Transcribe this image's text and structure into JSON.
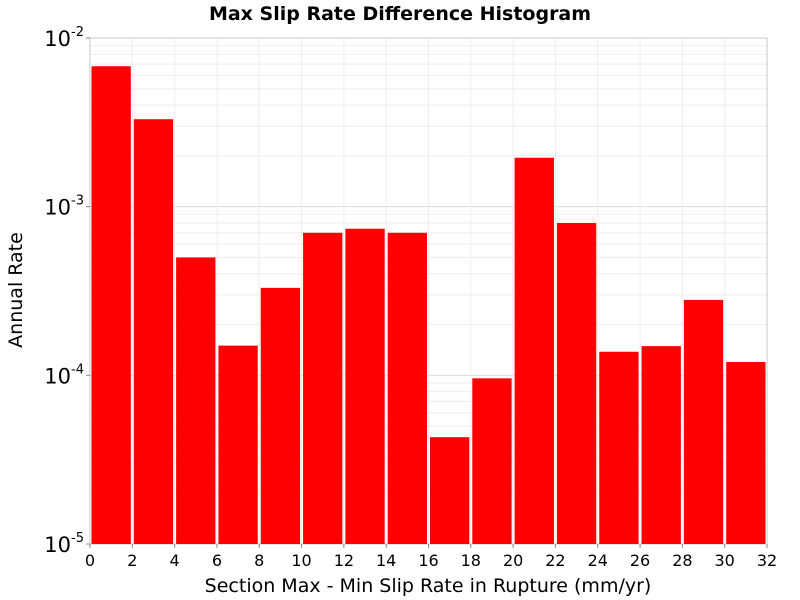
{
  "chart_data": {
    "type": "bar",
    "title": "Max Slip Rate Difference Histogram",
    "xlabel": "Section Max - Min Slip Rate in Rupture (mm/yr)",
    "ylabel": "Annual Rate",
    "x_scale": "linear",
    "y_scale": "log",
    "xlim": [
      0,
      32
    ],
    "ylim": [
      1e-05,
      0.01
    ],
    "bin_width": 2,
    "x_ticks": [
      0,
      2,
      4,
      6,
      8,
      10,
      12,
      14,
      16,
      18,
      20,
      22,
      24,
      26,
      28,
      30,
      32
    ],
    "y_ticks": [
      {
        "value": 1e-05,
        "base": "10",
        "exp": "-5"
      },
      {
        "value": 0.0001,
        "base": "10",
        "exp": "-4"
      },
      {
        "value": 0.001,
        "base": "10",
        "exp": "-3"
      },
      {
        "value": 0.01,
        "base": "10",
        "exp": "-2"
      }
    ],
    "grid": true,
    "bar_color": "#ff0000",
    "bins": [
      {
        "x_start": 0,
        "x_end": 2,
        "value": 0.0068
      },
      {
        "x_start": 2,
        "x_end": 4,
        "value": 0.0033
      },
      {
        "x_start": 4,
        "x_end": 6,
        "value": 0.0005
      },
      {
        "x_start": 6,
        "x_end": 8,
        "value": 0.00015
      },
      {
        "x_start": 8,
        "x_end": 10,
        "value": 0.00033
      },
      {
        "x_start": 10,
        "x_end": 12,
        "value": 0.0007
      },
      {
        "x_start": 12,
        "x_end": 14,
        "value": 0.00074
      },
      {
        "x_start": 14,
        "x_end": 16,
        "value": 0.0007
      },
      {
        "x_start": 16,
        "x_end": 18,
        "value": 4.3e-05
      },
      {
        "x_start": 18,
        "x_end": 20,
        "value": 9.6e-05
      },
      {
        "x_start": 20,
        "x_end": 22,
        "value": 0.00195
      },
      {
        "x_start": 22,
        "x_end": 24,
        "value": 0.0008
      },
      {
        "x_start": 24,
        "x_end": 26,
        "value": 0.000138
      },
      {
        "x_start": 26,
        "x_end": 28,
        "value": 0.000149
      },
      {
        "x_start": 28,
        "x_end": 30,
        "value": 0.00028
      },
      {
        "x_start": 30,
        "x_end": 32,
        "value": 0.00012
      }
    ]
  }
}
